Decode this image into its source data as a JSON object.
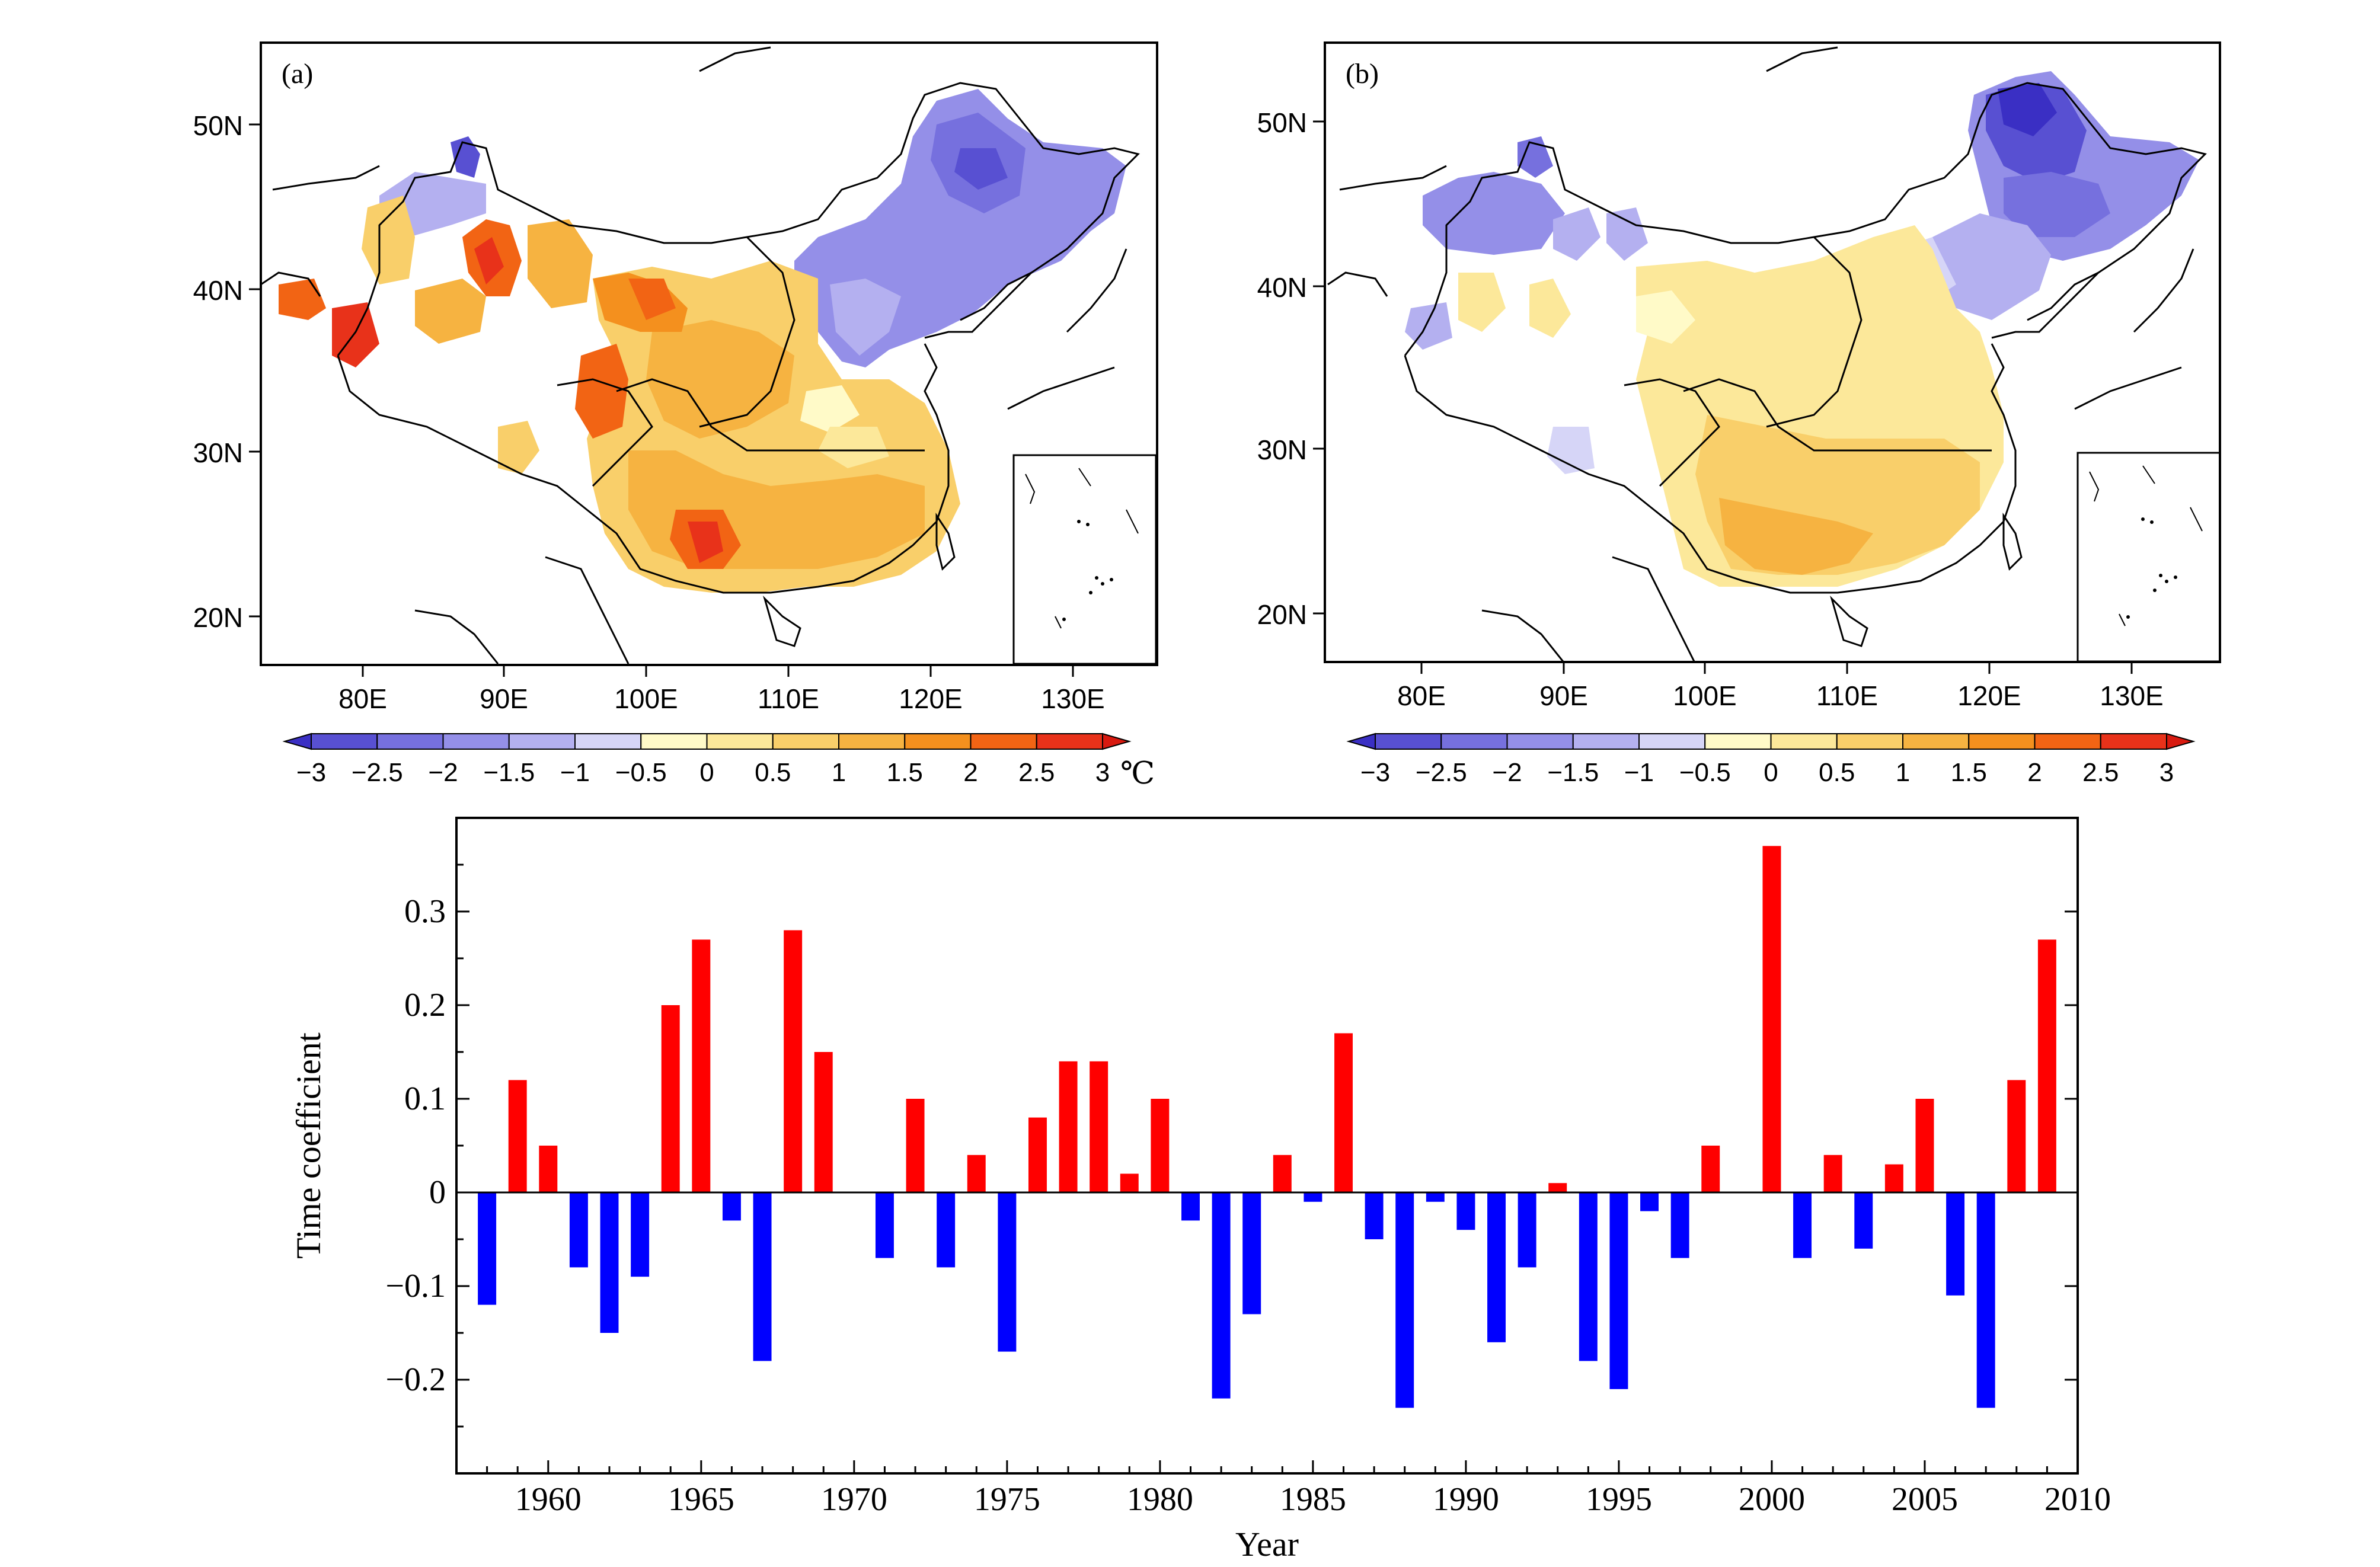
{
  "maps": [
    {
      "panel_label": "(a)",
      "lat_ticks": [
        "20N",
        "30N",
        "40N",
        "50N"
      ],
      "lon_ticks": [
        "80E",
        "90E",
        "100E",
        "110E",
        "120E",
        "130E"
      ],
      "colorbar_labels": [
        "−3",
        "−2.5",
        "−2",
        "−1.5",
        "−1",
        "−0.5",
        "0",
        "0.5",
        "1",
        "1.5",
        "2",
        "2.5",
        "3"
      ],
      "unit": "℃"
    },
    {
      "panel_label": "(b)",
      "lat_ticks": [
        "20N",
        "30N",
        "40N",
        "50N"
      ],
      "lon_ticks": [
        "80E",
        "90E",
        "100E",
        "110E",
        "120E",
        "130E"
      ],
      "colorbar_labels": [
        "−3",
        "−2.5",
        "−2",
        "−1.5",
        "−1",
        "−0.5",
        "0",
        "0.5",
        "1",
        "1.5",
        "2",
        "2.5",
        "3"
      ],
      "unit": ""
    }
  ],
  "colorbar_colors": [
    "#3a2fc4",
    "#5850d2",
    "#7670de",
    "#948fe8",
    "#b4b0f0",
    "#d6d5f7",
    "#fffac8",
    "#fce89a",
    "#f9cf6a",
    "#f6b341",
    "#f4901e",
    "#f26414",
    "#e8321a",
    "#d81a10"
  ],
  "chart_data": {
    "type": "bar",
    "title": "",
    "xlabel": "Year",
    "ylabel": "Time coefficient",
    "xlim": [
      1957,
      2010
    ],
    "ylim": [
      -0.3,
      0.4
    ],
    "x_ticks": [
      1960,
      1965,
      1970,
      1975,
      1980,
      1985,
      1990,
      1995,
      2000,
      2005,
      2010
    ],
    "y_ticks": [
      -0.2,
      -0.1,
      0,
      0.1,
      0.2,
      0.3
    ],
    "y_tick_labels": [
      "−0.2",
      "−0.1",
      "0",
      "0.1",
      "0.2",
      "0.3"
    ],
    "positive_color": "#ff0000",
    "negative_color": "#0000ff",
    "years": [
      1958,
      1959,
      1960,
      1961,
      1962,
      1963,
      1964,
      1965,
      1966,
      1967,
      1968,
      1969,
      1970,
      1971,
      1972,
      1973,
      1974,
      1975,
      1976,
      1977,
      1978,
      1979,
      1980,
      1981,
      1982,
      1983,
      1984,
      1985,
      1986,
      1987,
      1988,
      1989,
      1990,
      1991,
      1992,
      1993,
      1994,
      1995,
      1996,
      1997,
      1998,
      1999,
      2000,
      2001,
      2002,
      2003,
      2004,
      2005,
      2006,
      2007,
      2008,
      2009
    ],
    "values": [
      -0.12,
      0.12,
      0.05,
      -0.08,
      -0.15,
      -0.09,
      0.2,
      0.27,
      -0.03,
      -0.18,
      0.28,
      0.15,
      0.0,
      -0.07,
      0.1,
      -0.08,
      0.04,
      -0.17,
      0.08,
      0.14,
      0.14,
      0.02,
      0.1,
      -0.03,
      -0.22,
      -0.13,
      0.04,
      -0.01,
      0.17,
      -0.05,
      -0.23,
      -0.01,
      -0.04,
      -0.16,
      -0.08,
      0.01,
      -0.18,
      -0.21,
      -0.02,
      -0.07,
      0.05,
      0.0,
      0.37,
      -0.07,
      0.04,
      -0.06,
      0.03,
      0.1,
      -0.11,
      -0.23,
      0.12,
      0.27
    ]
  }
}
